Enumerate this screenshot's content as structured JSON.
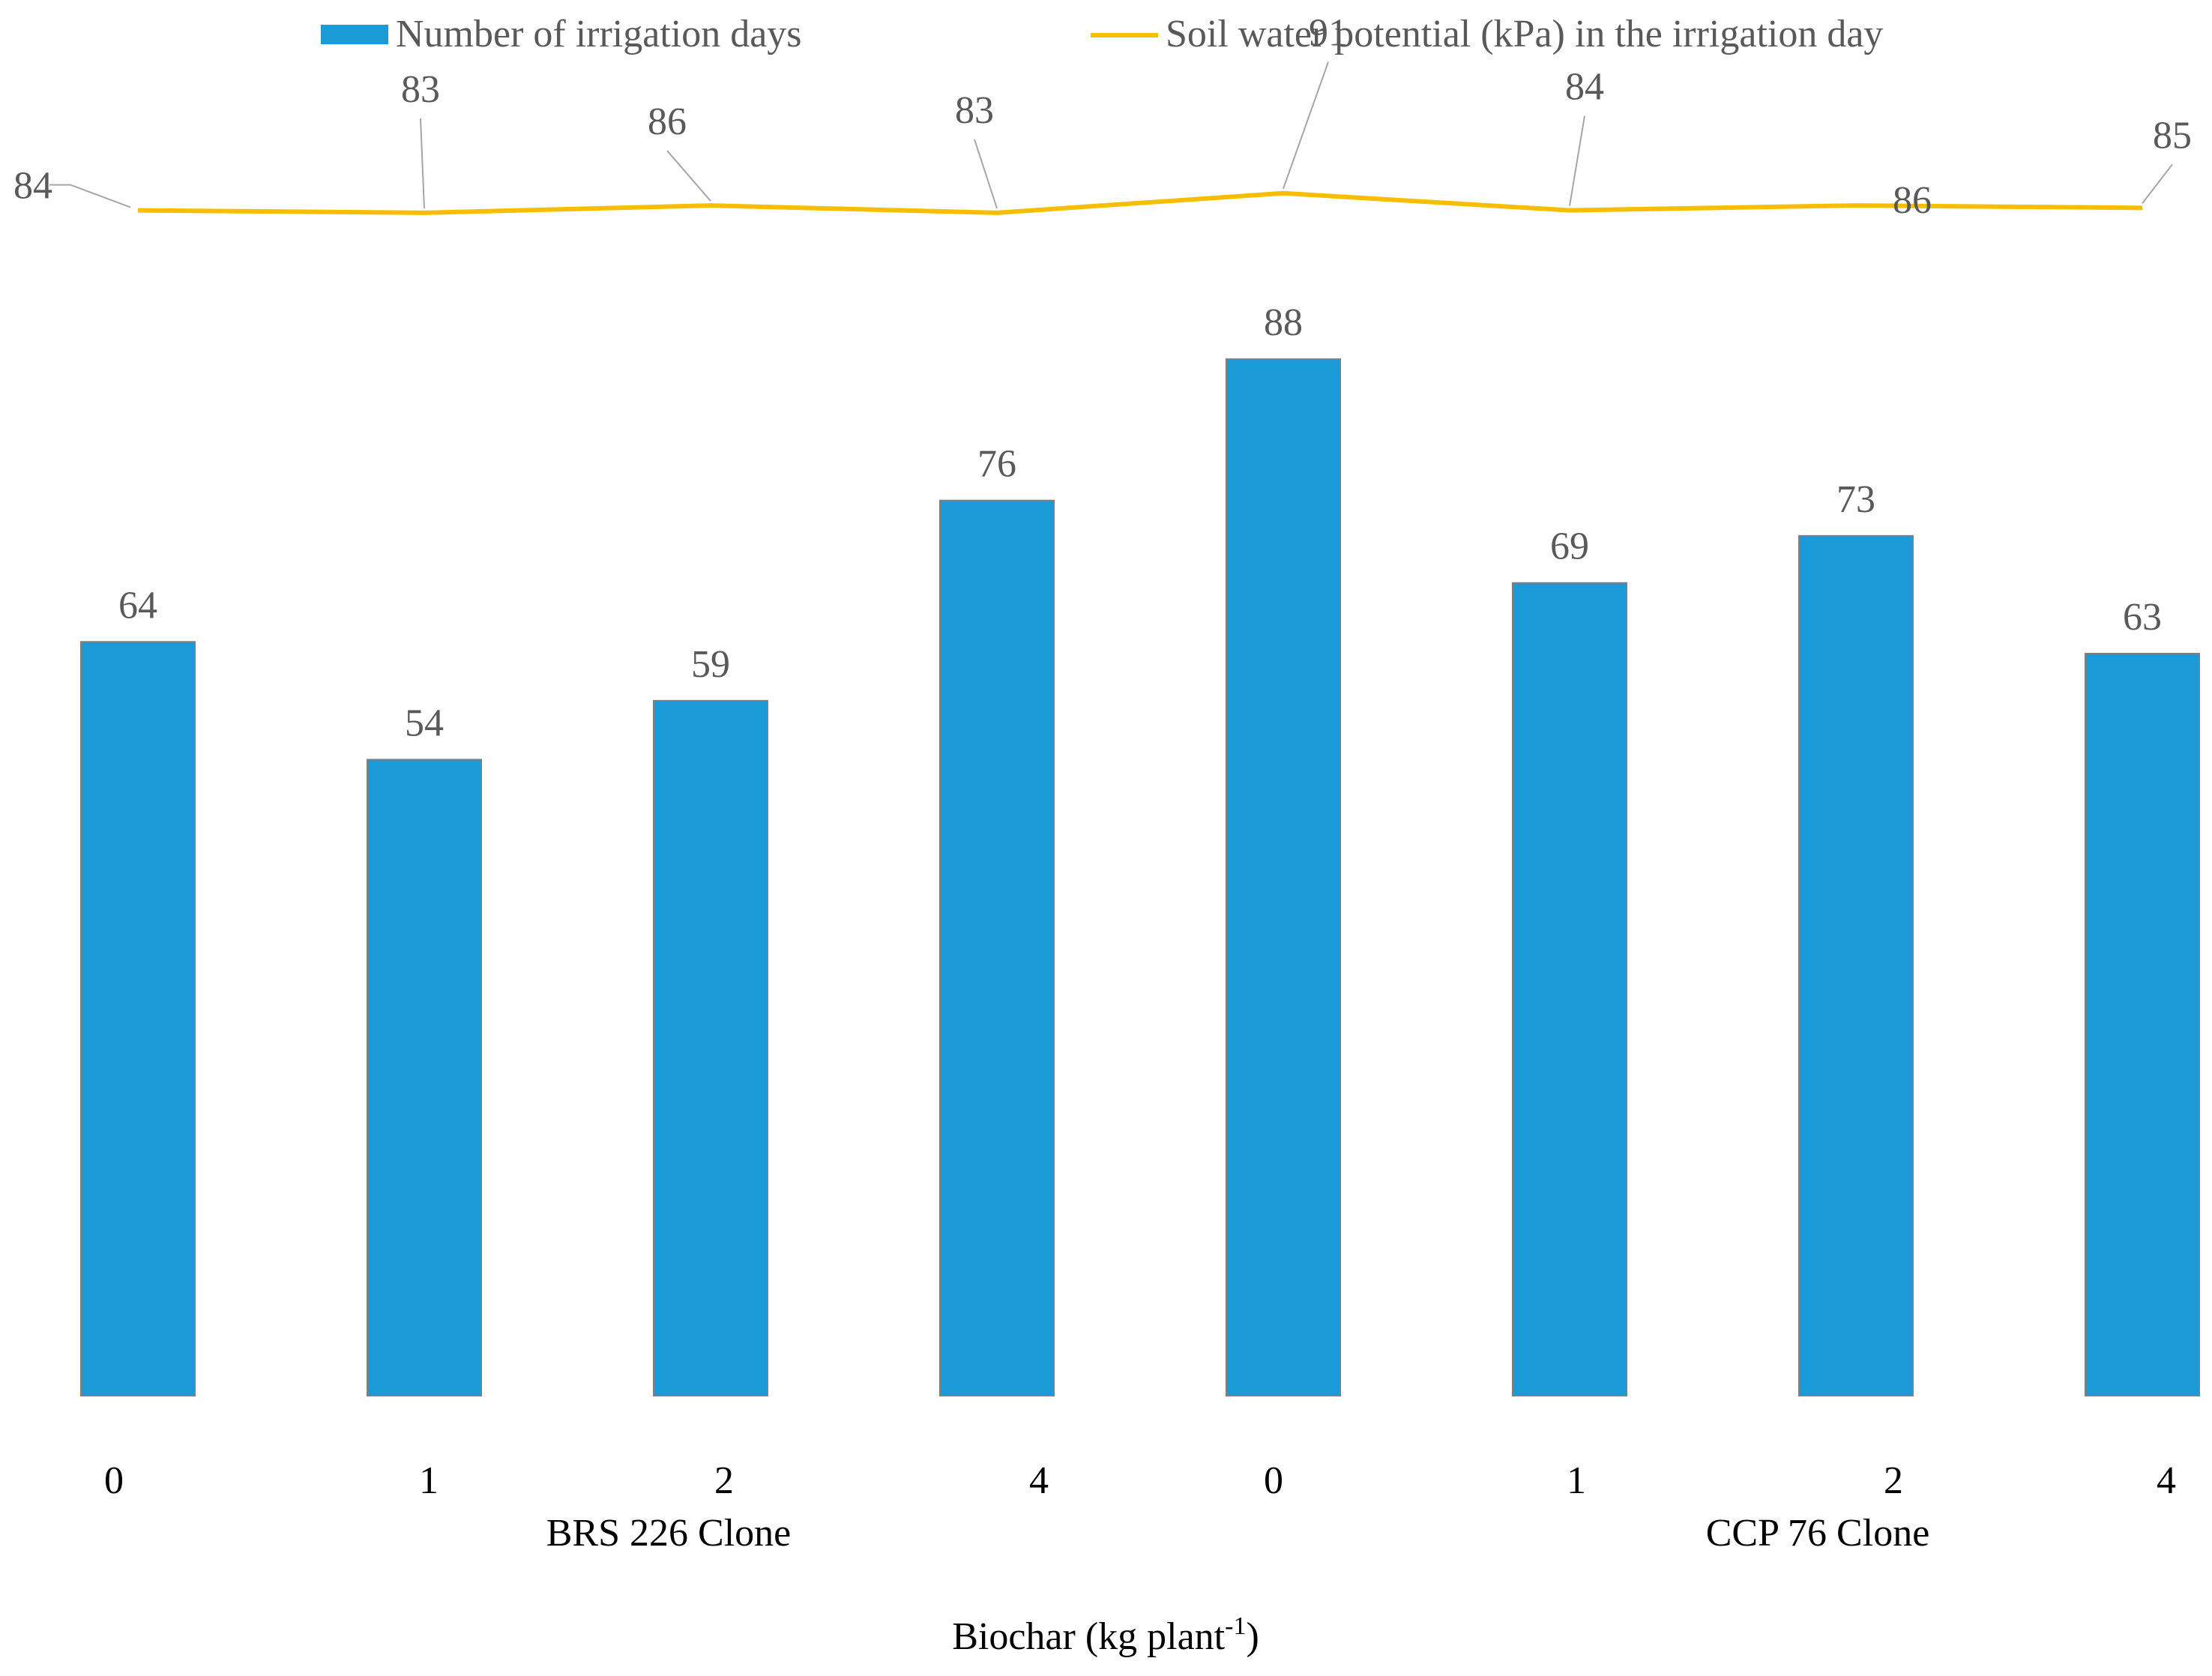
{
  "chart_data": {
    "type": "bar",
    "title": "",
    "xlabel": "Biochar  (kg plant",
    "xlabel_superscript": "-1",
    "xlabel_suffix": ")",
    "ylabel": "",
    "categories": [
      "0",
      "1",
      "2",
      "4",
      "0",
      "1",
      "2",
      "4"
    ],
    "groups": [
      {
        "label": "BRS 226 Clone",
        "categories": [
          "0",
          "1",
          "2",
          "4"
        ]
      },
      {
        "label": "CCP 76 Clone",
        "categories": [
          "0",
          "1",
          "2",
          "4"
        ]
      }
    ],
    "series": [
      {
        "name": "Number of irrigation days",
        "type": "bar",
        "color": "#1a9bd7",
        "values": [
          64,
          54,
          59,
          76,
          88,
          69,
          73,
          63
        ],
        "ylim": [
          0,
          105
        ]
      },
      {
        "name": "Soil water potential  (kPa) in the irrigation day",
        "type": "line",
        "color": "#f5bf00",
        "values": [
          84,
          83,
          86,
          83,
          91,
          84,
          86,
          85
        ],
        "ylim": [
          -400,
          105
        ]
      }
    ],
    "legend_position": "top",
    "grid": false
  }
}
